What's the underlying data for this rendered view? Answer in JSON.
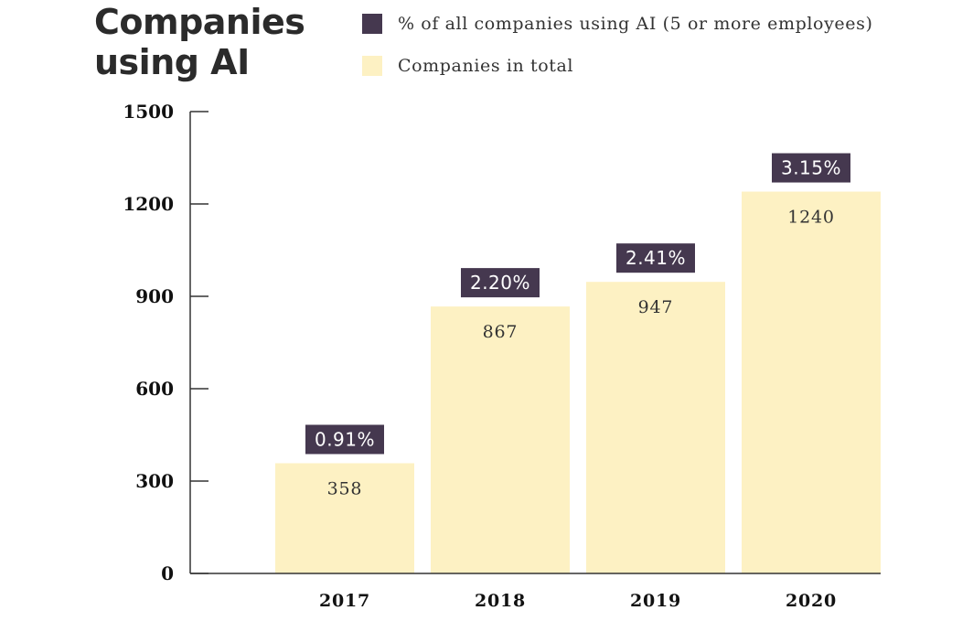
{
  "title": "Companies using AI",
  "legend": [
    {
      "label": "% of all companies using AI (5 or more employees)",
      "color": "#45384f"
    },
    {
      "label": "Companies in total",
      "color": "#fdf1c3"
    }
  ],
  "chart_data": {
    "type": "bar",
    "title": "Companies using AI",
    "categories": [
      "2017",
      "2018",
      "2019",
      "2020"
    ],
    "series": [
      {
        "name": "Companies in total",
        "values": [
          358,
          867,
          947,
          1240
        ],
        "color": "#fdf1c3"
      },
      {
        "name": "% of all companies using AI (5 or more employees)",
        "values": [
          0.91,
          2.2,
          2.41,
          3.15
        ],
        "labels": [
          "0.91%",
          "2.20%",
          "2.41%",
          "3.15%"
        ],
        "color": "#45384f"
      }
    ],
    "ylim": [
      0,
      1500
    ],
    "yticks": [
      0,
      300,
      600,
      900,
      1200,
      1500
    ],
    "xlabel": "",
    "ylabel": "",
    "grid": false,
    "legend_position": "top"
  }
}
